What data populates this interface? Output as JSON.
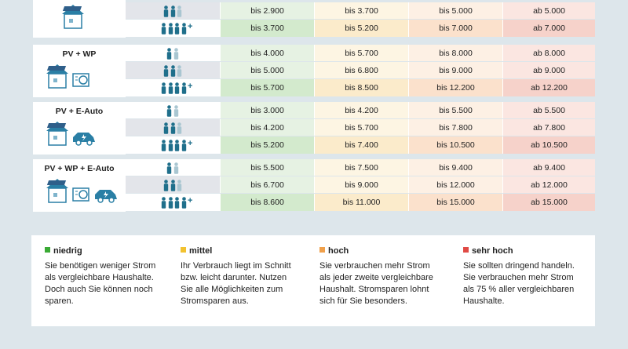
{
  "groups": [
    {
      "rows": [
        {
          "cells": [
            "bis 2.900",
            "bis 3.700",
            "bis 5.000",
            "ab 5.000"
          ]
        },
        {
          "plus": "+",
          "cells": [
            "bis 3.700",
            "bis 5.200",
            "bis 7.000",
            "ab 7.000"
          ]
        }
      ]
    },
    {
      "label": "PV + WP",
      "rows": [
        {
          "cells": [
            "bis 4.000",
            "bis 5.700",
            "bis 8.000",
            "ab 8.000"
          ]
        },
        {
          "cells": [
            "bis 5.000",
            "bis 6.800",
            "bis 9.000",
            "ab 9.000"
          ]
        },
        {
          "plus": "+",
          "cells": [
            "bis 5.700",
            "bis 8.500",
            "bis 12.200",
            "ab 12.200"
          ]
        }
      ]
    },
    {
      "label": "PV + E-Auto",
      "rows": [
        {
          "cells": [
            "bis 3.000",
            "bis 4.200",
            "bis 5.500",
            "ab 5.500"
          ]
        },
        {
          "cells": [
            "bis 4.200",
            "bis 5.700",
            "bis 7.800",
            "ab 7.800"
          ]
        },
        {
          "plus": "+",
          "cells": [
            "bis 5.200",
            "bis 7.400",
            "bis 10.500",
            "ab 10.500"
          ]
        }
      ]
    },
    {
      "label": "PV + WP + E-Auto",
      "rows": [
        {
          "cells": [
            "bis 5.500",
            "bis 7.500",
            "bis 9.400",
            "ab 9.400"
          ]
        },
        {
          "cells": [
            "bis 6.700",
            "bis 9.000",
            "bis 12.000",
            "ab 12.000"
          ]
        },
        {
          "plus": "+",
          "cells": [
            "bis 8.600",
            "bis 11.000",
            "bis 15.000",
            "ab 15.000"
          ]
        }
      ]
    }
  ],
  "legend": [
    {
      "title": "niedrig",
      "text": "Sie benötigen weniger Strom als vergleichbare Haushalte. Doch auch Sie können noch sparen."
    },
    {
      "title": "mittel",
      "text": "Ihr Verbrauch liegt im Schnitt bzw. leicht darunter. Nutzen Sie alle Möglichkeiten zum Stromsparen aus."
    },
    {
      "title": "hoch",
      "text": "Sie verbrauchen mehr Strom als jeder zweite vergleichbare Haushalt. Stromsparen lohnt sich für Sie besonders."
    },
    {
      "title": "sehr hoch",
      "text": "Sie sollten dringend handeln. Sie verbrauchen mehr Strom als 75 % aller vergleichbaren Haushalte."
    }
  ]
}
